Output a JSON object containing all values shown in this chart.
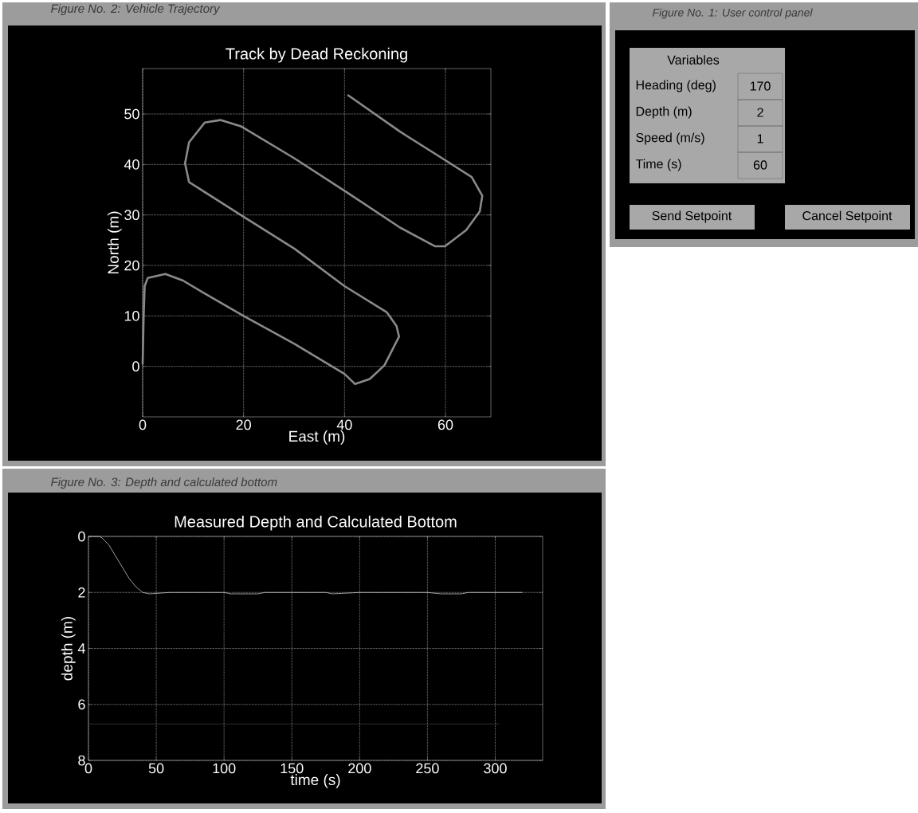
{
  "chart_data": [
    {
      "type": "line",
      "title": "Track by Dead Reckoning",
      "xlabel": "East (m)",
      "ylabel": "North (m)",
      "annotations": [
        "Figure No. 2: Vehicle Trajectory"
      ],
      "grid": true,
      "xlim": [
        0,
        69
      ],
      "ylim": [
        -10,
        59
      ],
      "xticks": [
        0,
        20,
        40,
        60
      ],
      "yticks": [
        0,
        10,
        20,
        30,
        40,
        50
      ],
      "color": "#8a8a8a",
      "x": [
        0,
        0.1,
        0.2,
        0.4,
        1,
        4.5,
        8,
        12,
        20,
        30,
        40,
        42.1,
        45,
        47.9,
        50.8,
        50.3,
        48.4,
        40,
        30.1,
        19.6,
        9.2,
        8.4,
        9.2,
        12.3,
        15.4,
        19.6,
        30.1,
        40.6,
        51,
        57.9,
        59.9,
        64.1,
        66.8,
        67.3,
        65.2,
        59.4,
        51,
        40.6
      ],
      "values": [
        0.4,
        5,
        10,
        15.9,
        17.5,
        18.3,
        17,
        14.6,
        10,
        4.5,
        -1.5,
        -3.5,
        -2.5,
        0.2,
        5.9,
        8,
        10.7,
        15.9,
        23.3,
        29.9,
        36.5,
        40.2,
        44.4,
        48.3,
        48.8,
        47.5,
        41.2,
        34.4,
        27.5,
        23.8,
        23.8,
        27,
        30.7,
        33.8,
        37.5,
        41.2,
        46.5,
        53.8
      ]
    },
    {
      "type": "other",
      "title": "Figure No. 1: User control panel",
      "subtitle": "Variables",
      "categories": [
        "Heading (deg)",
        "Depth (m)",
        "Speed (m/s)",
        "Time (s)"
      ],
      "values": [
        170,
        2,
        1,
        60
      ],
      "data_labels": true,
      "annotations": [
        "Send Setpoint",
        "Cancel Setpoint"
      ]
    },
    {
      "type": "line",
      "title": "Measured Depth and Calculated Bottom",
      "xlabel": "time (s)",
      "ylabel": "depth (m)",
      "annotations": [
        "Figure No. 3: Depth and calculated bottom"
      ],
      "grid": true,
      "xlim": [
        0,
        335
      ],
      "ylim": [
        8,
        0
      ],
      "xticks": [
        0,
        50,
        100,
        150,
        200,
        250,
        300
      ],
      "yticks": [
        0,
        2,
        4,
        6,
        8
      ],
      "series": [
        {
          "color": "#c8c8c8",
          "x": [
            0,
            8,
            10,
            15,
            20,
            25,
            30,
            35,
            40,
            45,
            60,
            100,
            105,
            125,
            130,
            175,
            180,
            200,
            250,
            260,
            275,
            280,
            300,
            320
          ],
          "values": [
            0,
            0,
            0.05,
            0.3,
            0.7,
            1.1,
            1.5,
            1.8,
            2.0,
            2.05,
            2.0,
            2.0,
            2.05,
            2.05,
            2.0,
            2.0,
            2.05,
            2.0,
            2.0,
            2.05,
            2.05,
            2.0,
            2.0,
            2.0
          ]
        },
        {
          "color": "#3a3a3a",
          "x": [
            0,
            100,
            200,
            303
          ],
          "values": [
            6.7,
            6.7,
            6.7,
            6.7
          ]
        }
      ]
    }
  ]
}
